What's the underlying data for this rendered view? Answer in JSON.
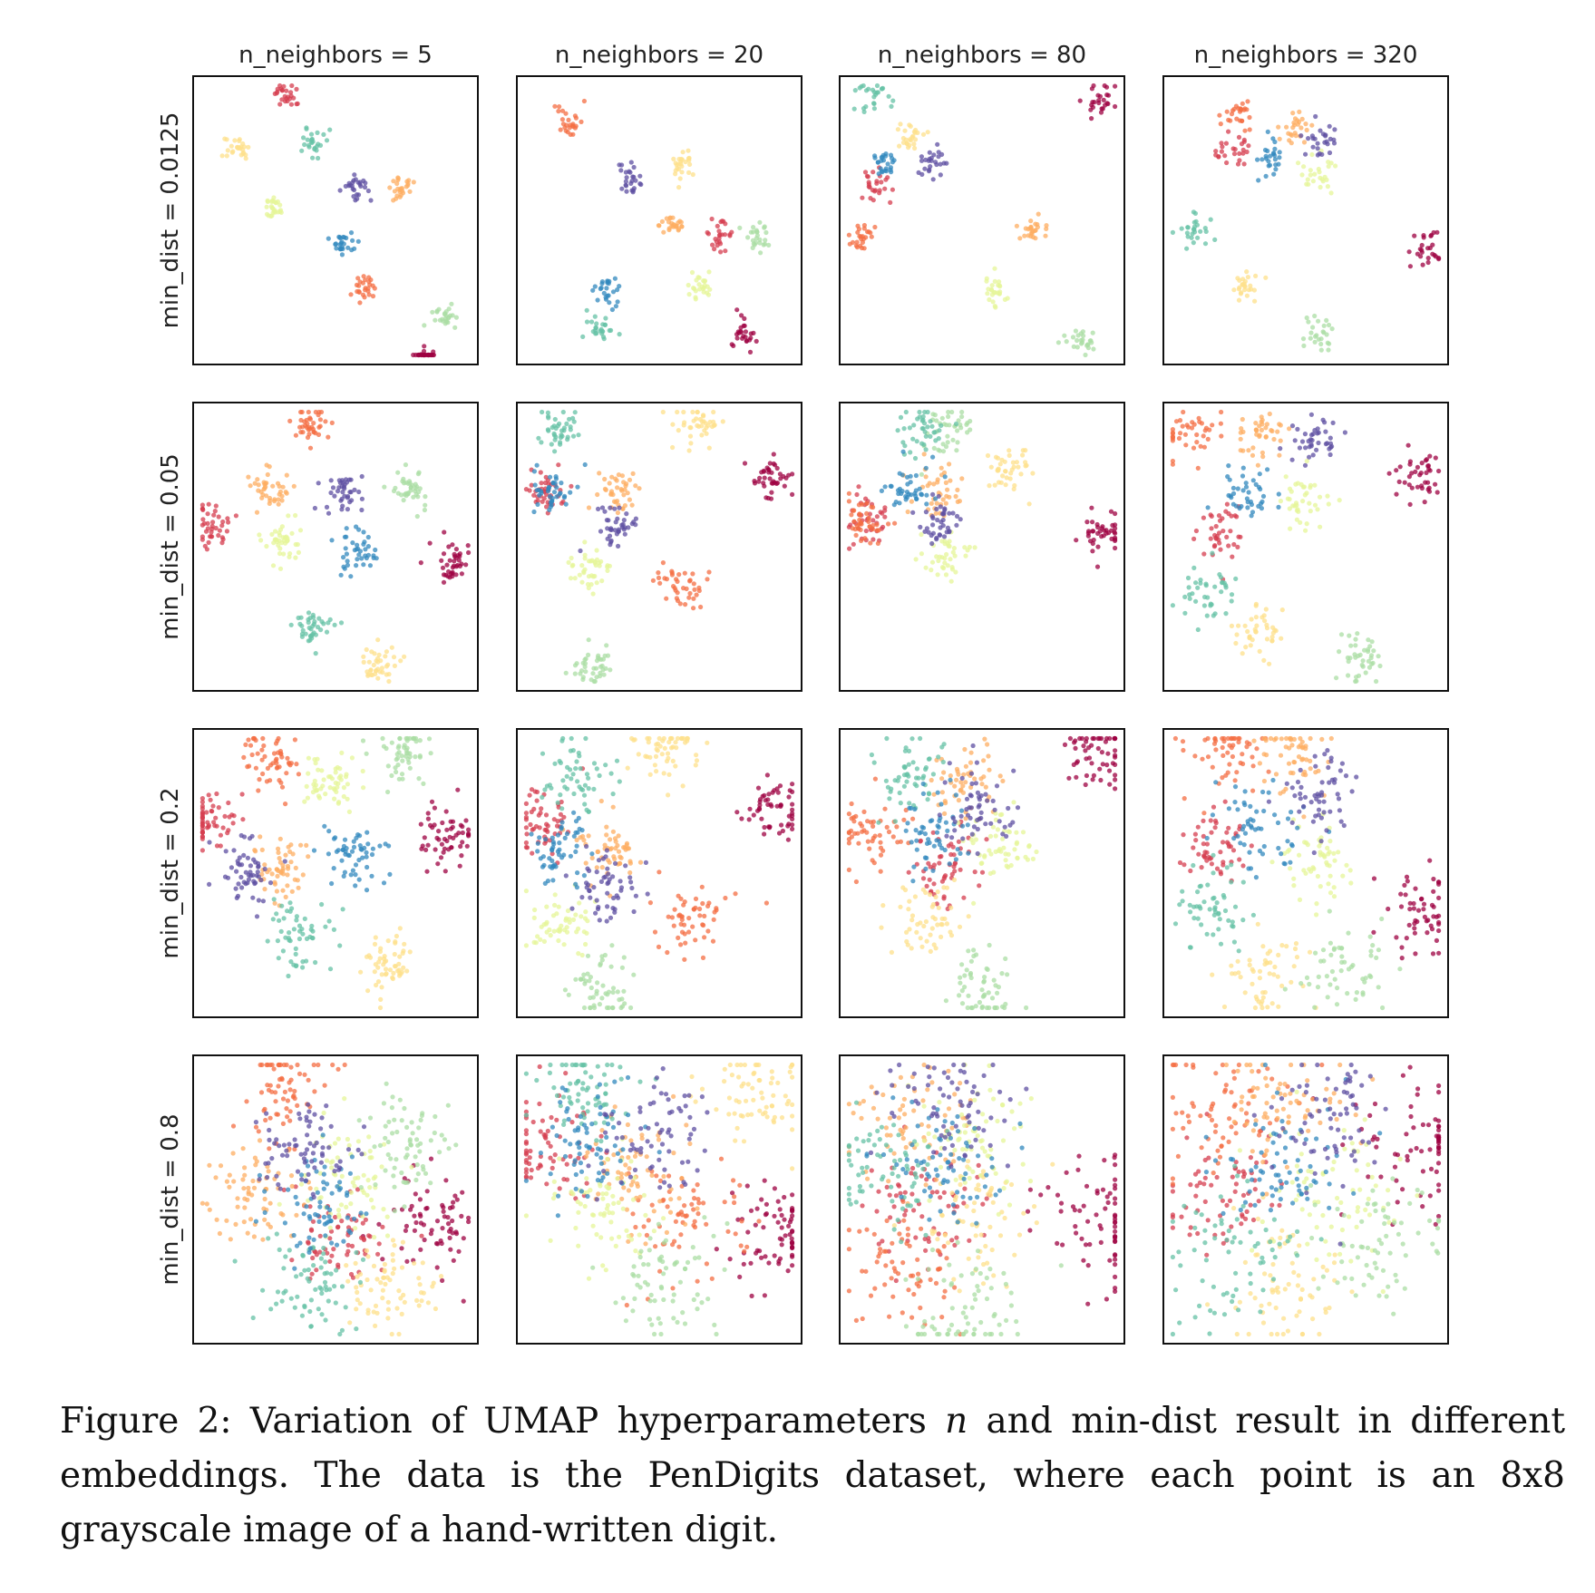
{
  "chart_data": {
    "type": "scatter",
    "title": "",
    "col_param": "n_neighbors",
    "row_param": "min_dist",
    "col_titles": [
      "n_neighbors = 5",
      "n_neighbors = 20",
      "n_neighbors = 80",
      "n_neighbors = 320"
    ],
    "row_labels": [
      "min_dist = 0.0125",
      "min_dist = 0.05",
      "min_dist = 0.2",
      "min_dist = 0.8"
    ],
    "axes_ticks": "none",
    "grid": false,
    "palette": [
      "#9e0142",
      "#d53e4f",
      "#f46d43",
      "#fdae61",
      "#fee08b",
      "#e6f598",
      "#abdda4",
      "#66c2a5",
      "#3288bd",
      "#5e4fa2"
    ],
    "clusters": [
      [
        [
          [
            0.82,
            1.0
          ],
          [
            0.33,
            0.06
          ],
          [
            0.6,
            0.73
          ],
          [
            0.73,
            0.38
          ],
          [
            0.15,
            0.25
          ],
          [
            0.28,
            0.46
          ],
          [
            0.89,
            0.84
          ],
          [
            0.42,
            0.23
          ],
          [
            0.52,
            0.58
          ],
          [
            0.58,
            0.39
          ]
        ],
        [
          [
            0.8,
            0.9
          ],
          [
            0.71,
            0.55
          ],
          [
            0.18,
            0.15
          ],
          [
            0.55,
            0.52
          ],
          [
            0.58,
            0.3
          ],
          [
            0.64,
            0.72
          ],
          [
            0.85,
            0.55
          ],
          [
            0.3,
            0.88
          ],
          [
            0.32,
            0.75
          ],
          [
            0.4,
            0.36
          ]
        ],
        [
          [
            0.91,
            0.08
          ],
          [
            0.12,
            0.38
          ],
          [
            0.07,
            0.55
          ],
          [
            0.68,
            0.53
          ],
          [
            0.25,
            0.21
          ],
          [
            0.55,
            0.75
          ],
          [
            0.85,
            0.92
          ],
          [
            0.12,
            0.08
          ],
          [
            0.15,
            0.3
          ],
          [
            0.31,
            0.29
          ]
        ],
        [
          [
            0.92,
            0.6
          ],
          [
            0.24,
            0.26
          ],
          [
            0.26,
            0.12
          ],
          [
            0.47,
            0.17
          ],
          [
            0.29,
            0.73
          ],
          [
            0.54,
            0.34
          ],
          [
            0.55,
            0.9
          ],
          [
            0.1,
            0.53
          ],
          [
            0.38,
            0.29
          ],
          [
            0.55,
            0.22
          ]
        ]
      ],
      [
        [
          [
            0.93,
            0.55
          ],
          [
            0.06,
            0.43
          ],
          [
            0.42,
            0.07
          ],
          [
            0.26,
            0.3
          ],
          [
            0.65,
            0.91
          ],
          [
            0.32,
            0.48
          ],
          [
            0.76,
            0.29
          ],
          [
            0.42,
            0.78
          ],
          [
            0.57,
            0.51
          ],
          [
            0.53,
            0.32
          ]
        ],
        [
          [
            0.9,
            0.27
          ],
          [
            0.08,
            0.3
          ],
          [
            0.57,
            0.63
          ],
          [
            0.35,
            0.3
          ],
          [
            0.64,
            0.08
          ],
          [
            0.25,
            0.58
          ],
          [
            0.27,
            0.92
          ],
          [
            0.15,
            0.1
          ],
          [
            0.13,
            0.3
          ],
          [
            0.35,
            0.43
          ]
        ],
        [
          [
            0.93,
            0.46
          ],
          [
            0.09,
            0.41
          ],
          [
            0.08,
            0.42
          ],
          [
            0.34,
            0.31
          ],
          [
            0.6,
            0.23
          ],
          [
            0.37,
            0.53
          ],
          [
            0.37,
            0.09
          ],
          [
            0.29,
            0.09
          ],
          [
            0.23,
            0.3
          ],
          [
            0.34,
            0.42
          ]
        ],
        [
          [
            0.9,
            0.25
          ],
          [
            0.19,
            0.44
          ],
          [
            0.09,
            0.11
          ],
          [
            0.34,
            0.11
          ],
          [
            0.34,
            0.8
          ],
          [
            0.5,
            0.35
          ],
          [
            0.7,
            0.89
          ],
          [
            0.14,
            0.67
          ],
          [
            0.29,
            0.32
          ],
          [
            0.52,
            0.13
          ]
        ]
      ],
      [
        [
          [
            0.9,
            0.38
          ],
          [
            0.05,
            0.3
          ],
          [
            0.28,
            0.11
          ],
          [
            0.32,
            0.47
          ],
          [
            0.68,
            0.8
          ],
          [
            0.48,
            0.18
          ],
          [
            0.74,
            0.1
          ],
          [
            0.36,
            0.72
          ],
          [
            0.57,
            0.43
          ],
          [
            0.18,
            0.5
          ]
        ],
        [
          [
            0.91,
            0.26
          ],
          [
            0.08,
            0.32
          ],
          [
            0.63,
            0.66
          ],
          [
            0.32,
            0.42
          ],
          [
            0.52,
            0.06
          ],
          [
            0.14,
            0.67
          ],
          [
            0.3,
            0.9
          ],
          [
            0.21,
            0.15
          ],
          [
            0.15,
            0.43
          ],
          [
            0.32,
            0.55
          ]
        ],
        [
          [
            0.91,
            0.08
          ],
          [
            0.38,
            0.49
          ],
          [
            0.11,
            0.37
          ],
          [
            0.44,
            0.18
          ],
          [
            0.3,
            0.67
          ],
          [
            0.55,
            0.4
          ],
          [
            0.5,
            0.91
          ],
          [
            0.23,
            0.13
          ],
          [
            0.32,
            0.35
          ],
          [
            0.49,
            0.28
          ]
        ],
        [
          [
            0.91,
            0.65
          ],
          [
            0.19,
            0.4
          ],
          [
            0.22,
            0.08
          ],
          [
            0.47,
            0.1
          ],
          [
            0.36,
            0.85
          ],
          [
            0.55,
            0.45
          ],
          [
            0.64,
            0.84
          ],
          [
            0.17,
            0.62
          ],
          [
            0.33,
            0.33
          ],
          [
            0.55,
            0.22
          ]
        ]
      ],
      [
        [
          [
            0.85,
            0.56
          ],
          [
            0.5,
            0.62
          ],
          [
            0.33,
            0.11
          ],
          [
            0.22,
            0.49
          ],
          [
            0.69,
            0.82
          ],
          [
            0.56,
            0.41
          ],
          [
            0.75,
            0.31
          ],
          [
            0.41,
            0.8
          ],
          [
            0.45,
            0.53
          ],
          [
            0.37,
            0.35
          ]
        ],
        [
          [
            0.89,
            0.61
          ],
          [
            0.11,
            0.31
          ],
          [
            0.61,
            0.55
          ],
          [
            0.41,
            0.42
          ],
          [
            0.84,
            0.12
          ],
          [
            0.29,
            0.52
          ],
          [
            0.52,
            0.81
          ],
          [
            0.24,
            0.1
          ],
          [
            0.24,
            0.3
          ],
          [
            0.48,
            0.27
          ]
        ],
        [
          [
            0.9,
            0.58
          ],
          [
            0.32,
            0.53
          ],
          [
            0.22,
            0.75
          ],
          [
            0.25,
            0.24
          ],
          [
            0.5,
            0.57
          ],
          [
            0.47,
            0.29
          ],
          [
            0.46,
            0.88
          ],
          [
            0.15,
            0.38
          ],
          [
            0.34,
            0.35
          ],
          [
            0.38,
            0.16
          ]
        ],
        [
          [
            0.91,
            0.33
          ],
          [
            0.21,
            0.49
          ],
          [
            0.23,
            0.19
          ],
          [
            0.42,
            0.18
          ],
          [
            0.42,
            0.82
          ],
          [
            0.59,
            0.49
          ],
          [
            0.75,
            0.65
          ],
          [
            0.23,
            0.69
          ],
          [
            0.38,
            0.39
          ],
          [
            0.58,
            0.22
          ]
        ]
      ]
    ],
    "spreads": [
      0.022,
      0.034,
      0.052,
      0.085
    ]
  },
  "caption": "Figure 2: Variation of UMAP hyperparameters n and min-dist result in different embeddings. The data is the PenDigits dataset, where each point is an 8x8 grayscale image of a hand-written digit.",
  "caption_parts": {
    "before": "Figure 2: Variation of UMAP hyperparameters ",
    "var": "n",
    "after": " and min-dist result in different embeddings. The data is the PenDigits dataset, where each point is an 8x8 grayscale image of a hand-written digit."
  }
}
